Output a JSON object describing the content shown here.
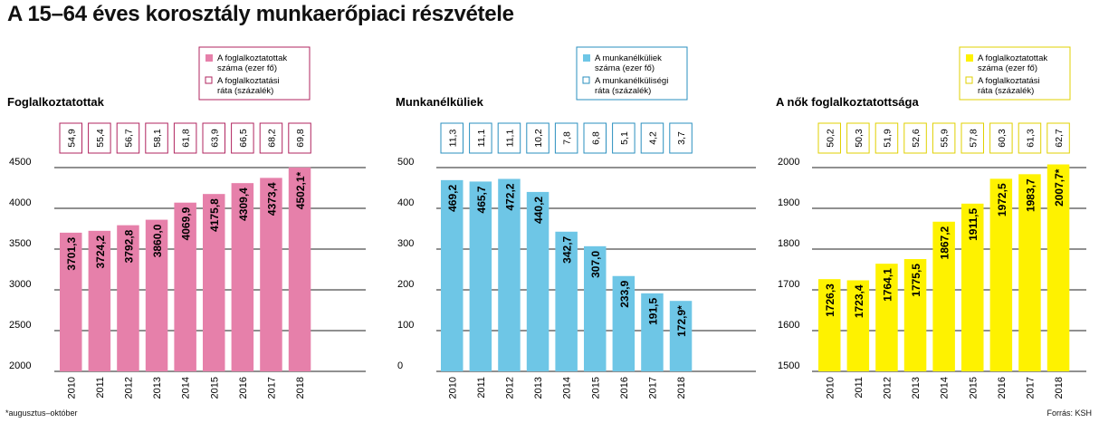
{
  "title": "A 15–64 éves korosztály munkaerőpiaci részvétele",
  "footnote": "*augusztus–október",
  "source": "Forrás: KSH",
  "colors": {
    "pink": "#e680aa",
    "pink_box": "#b0245f",
    "blue": "#6ec6e6",
    "blue_box": "#2a8fbf",
    "yellow": "#fef200",
    "yellow_box": "#e0d000"
  },
  "chart_data": [
    {
      "type": "bar",
      "title": "Foglalkoztatottak",
      "legend": [
        "A foglalkoztatottak száma (ezer fő)",
        "A foglalkoztatási ráta (százalék)"
      ],
      "categories": [
        "2010",
        "2011",
        "2012",
        "2013",
        "2014",
        "2015",
        "2016",
        "2017",
        "2018"
      ],
      "values": [
        3701.3,
        3724.2,
        3792.8,
        3860.0,
        4069.9,
        4175.8,
        4309.4,
        4373.4,
        4502.1
      ],
      "value_labels": [
        "3701,3",
        "3724,2",
        "3792,8",
        "3860,0",
        "4069,9",
        "4175,8",
        "4309,4",
        "4373,4",
        "4502,1*"
      ],
      "rates": [
        "54,9",
        "55,4",
        "56,7",
        "58,1",
        "61,8",
        "63,9",
        "66,5",
        "68,2",
        "69,8"
      ],
      "ylim": [
        2000,
        4500
      ],
      "yticks": [
        "2000",
        "2500",
        "3000",
        "3500",
        "4000",
        "4500"
      ],
      "color": "#e680aa",
      "box_color": "#b0245f"
    },
    {
      "type": "bar",
      "title": "Munkanélküliek",
      "legend": [
        "A munkanélküliek száma (ezer fő)",
        "A munkanélküliségi ráta (százalék)"
      ],
      "categories": [
        "2010",
        "2011",
        "2012",
        "2013",
        "2014",
        "2015",
        "2016",
        "2017",
        "2018"
      ],
      "values": [
        469.2,
        465.7,
        472.2,
        440.2,
        342.7,
        307.0,
        233.9,
        191.5,
        172.9
      ],
      "value_labels": [
        "469,2",
        "465,7",
        "472,2",
        "440,2",
        "342,7",
        "307,0",
        "233,9",
        "191,5",
        "172,9*"
      ],
      "rates": [
        "11,3",
        "11,1",
        "11,1",
        "10,2",
        "7,8",
        "6,8",
        "5,1",
        "4,2",
        "3,7"
      ],
      "ylim": [
        0,
        500
      ],
      "yticks": [
        "0",
        "100",
        "200",
        "300",
        "400",
        "500"
      ],
      "color": "#6ec6e6",
      "box_color": "#2a8fbf"
    },
    {
      "type": "bar",
      "title": "A nők foglalkoztatottsága",
      "legend": [
        "A foglalkoztatottak száma (ezer fő)",
        "A foglalkoztatási ráta (százalék)"
      ],
      "categories": [
        "2010",
        "2011",
        "2012",
        "2013",
        "2014",
        "2015",
        "2016",
        "2017",
        "2018"
      ],
      "values": [
        1726.3,
        1723.4,
        1764.1,
        1775.5,
        1867.2,
        1911.5,
        1972.5,
        1983.7,
        2007.7
      ],
      "value_labels": [
        "1726,3",
        "1723,4",
        "1764,1",
        "1775,5",
        "1867,2",
        "1911,5",
        "1972,5",
        "1983,7",
        "2007,7*"
      ],
      "rates": [
        "50,2",
        "50,3",
        "51,9",
        "52,6",
        "55,9",
        "57,8",
        "60,3",
        "61,3",
        "62,7"
      ],
      "ylim": [
        1500,
        2000
      ],
      "yticks": [
        "1500",
        "1600",
        "1700",
        "1800",
        "1900",
        "2000"
      ],
      "color": "#fef200",
      "box_color": "#e0d000"
    }
  ]
}
